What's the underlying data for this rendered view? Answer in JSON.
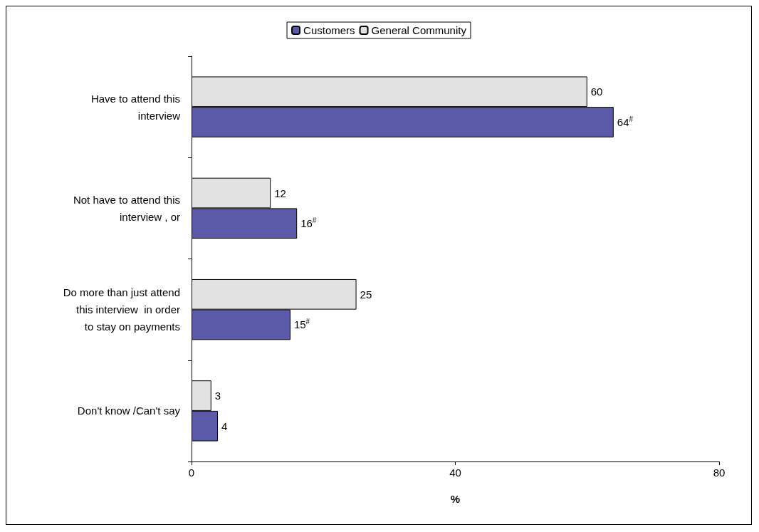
{
  "chart_data": {
    "type": "bar",
    "orientation": "horizontal",
    "xlabel": "%",
    "categories": [
      "Have to attend this interview",
      "Not have to attend this interview , or",
      "Do more than just attend this interview  in order to stay on payments",
      "Don't know /Can't say"
    ],
    "series": [
      {
        "name": "Customers",
        "color": "#5a5aa8",
        "values": [
          64,
          16,
          15,
          4
        ],
        "value_labels": [
          "64$^{#}$",
          "16$^{#}$",
          "15$^{#}$",
          "4"
        ]
      },
      {
        "name": "General Community",
        "color": "#e2e2e2",
        "values": [
          60,
          12,
          25,
          3
        ],
        "value_labels": [
          "60",
          "12",
          "25",
          "3"
        ]
      }
    ],
    "xlim": [
      0,
      80
    ],
    "xticks": [
      0,
      40,
      80
    ],
    "grid": false,
    "legend": "top"
  }
}
